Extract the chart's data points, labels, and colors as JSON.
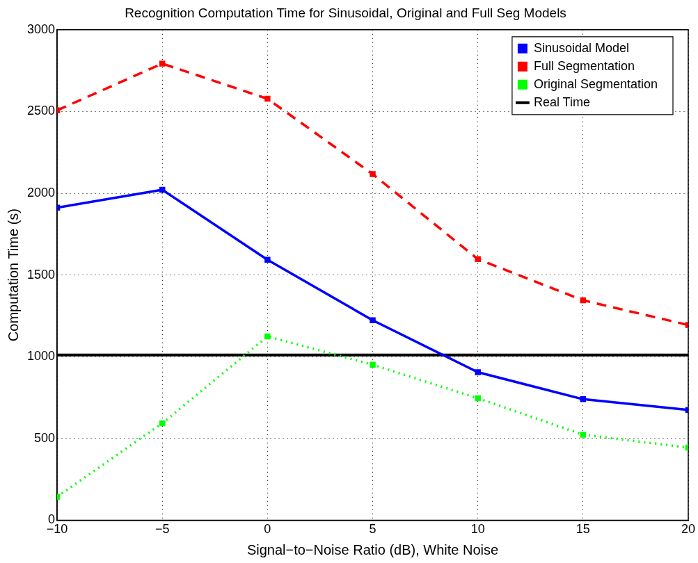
{
  "chart_data": {
    "type": "line",
    "title": "Recognition Computation Time for Sinusoidal, Original and Full Seg Models",
    "xlabel": "Signal−to−Noise Ratio (dB), White Noise",
    "ylabel": "Computation Time (s)",
    "x": [
      -10,
      -5,
      0,
      5,
      10,
      15,
      20
    ],
    "series": [
      {
        "name": "Sinusoidal Model",
        "color": "#0000ff",
        "values": [
          1912,
          2021,
          1593,
          1223,
          905,
          740,
          674
        ],
        "marker": "square",
        "line_style": "solid"
      },
      {
        "name": "Full Segmentation",
        "color": "#ff0000",
        "values": [
          2507,
          2793,
          2578,
          2117,
          1597,
          1345,
          1194
        ],
        "marker": "square",
        "line_style": "dashed"
      },
      {
        "name": "Original Segmentation",
        "color": "#00ff00",
        "values": [
          143,
          593,
          1124,
          951,
          746,
          523,
          444
        ],
        "marker": "square",
        "line_style": "dotted"
      },
      {
        "name": "Real Time",
        "color": "#000000",
        "x": [
          -10,
          20
        ],
        "values": [
          1010,
          1010
        ],
        "marker": "none",
        "line_style": "solid"
      }
    ],
    "xlim": [
      -10,
      20
    ],
    "xticks": [
      {
        "value": -10,
        "label": "−10"
      },
      {
        "value": -5,
        "label": "−5"
      },
      0,
      5,
      10,
      15,
      20
    ],
    "ylim": [
      0,
      3000
    ],
    "yticks": [
      0,
      500,
      1000,
      1500,
      2000,
      2500,
      3000
    ],
    "grid": true,
    "legend": "top right"
  }
}
